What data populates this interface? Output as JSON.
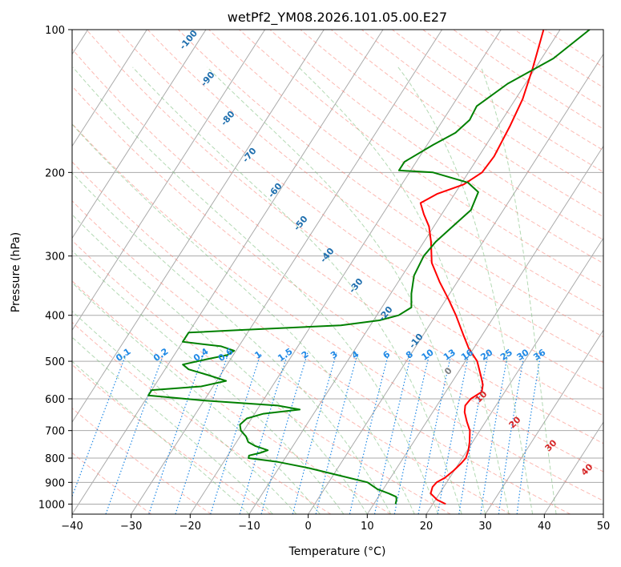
{
  "chart_data": {
    "type": "skewt",
    "title": "wetPf2_YM08.2026.101.05.00.E27",
    "xlabel": "Temperature (°C)",
    "ylabel": "Pressure (hPa)",
    "xlim": [
      -40,
      50
    ],
    "ylim": [
      1050,
      100
    ],
    "y_scale": "log",
    "x_ticks": [
      "−40",
      "−30",
      "−20",
      "−10",
      "0",
      "10",
      "20",
      "30",
      "40",
      "50"
    ],
    "x_tick_values": [
      -40,
      -30,
      -20,
      -10,
      0,
      10,
      20,
      30,
      40,
      50
    ],
    "y_ticks": [
      "100",
      "200",
      "300",
      "400",
      "500",
      "600",
      "700",
      "800",
      "900",
      "1000"
    ],
    "y_tick_values": [
      100,
      200,
      300,
      400,
      500,
      600,
      700,
      800,
      900,
      1000
    ],
    "grid": true,
    "series": [
      {
        "role": "temperature",
        "color": "#ff0000",
        "points": [
          [
            1000,
            22.2
          ],
          [
            980,
            20.3
          ],
          [
            950,
            18.5
          ],
          [
            920,
            18.1
          ],
          [
            900,
            18.3
          ],
          [
            880,
            19.2
          ],
          [
            850,
            19.9
          ],
          [
            820,
            20.4
          ],
          [
            800,
            20.6
          ],
          [
            770,
            20.2
          ],
          [
            740,
            19.5
          ],
          [
            700,
            18.3
          ],
          [
            670,
            16.8
          ],
          [
            640,
            15.4
          ],
          [
            620,
            14.8
          ],
          [
            600,
            15.0
          ],
          [
            580,
            16.1
          ],
          [
            560,
            15.5
          ],
          [
            540,
            14.4
          ],
          [
            500,
            12.0
          ],
          [
            470,
            9.2
          ],
          [
            440,
            6.8
          ],
          [
            400,
            3.4
          ],
          [
            370,
            0.4
          ],
          [
            340,
            -3.0
          ],
          [
            310,
            -6.4
          ],
          [
            280,
            -8.8
          ],
          [
            260,
            -10.8
          ],
          [
            245,
            -13.0
          ],
          [
            232,
            -14.8
          ],
          [
            222,
            -13.0
          ],
          [
            212,
            -9.5
          ],
          [
            200,
            -7.7
          ],
          [
            185,
            -7.4
          ],
          [
            160,
            -8.0
          ],
          [
            140,
            -8.8
          ],
          [
            120,
            -10.5
          ],
          [
            100,
            -12.8
          ]
        ]
      },
      {
        "role": "dewpoint",
        "color": "#008000",
        "points": [
          [
            1000,
            13.7
          ],
          [
            980,
            13.4
          ],
          [
            965,
            13.0
          ],
          [
            950,
            11.4
          ],
          [
            930,
            9.0
          ],
          [
            900,
            6.6
          ],
          [
            870,
            1.0
          ],
          [
            840,
            -4.8
          ],
          [
            815,
            -10.8
          ],
          [
            800,
            -16.2
          ],
          [
            790,
            -16.4
          ],
          [
            780,
            -14.8
          ],
          [
            770,
            -13.8
          ],
          [
            755,
            -16.3
          ],
          [
            740,
            -18.0
          ],
          [
            720,
            -19.0
          ],
          [
            700,
            -20.5
          ],
          [
            680,
            -21.3
          ],
          [
            660,
            -20.8
          ],
          [
            645,
            -18.5
          ],
          [
            632,
            -12.8
          ],
          [
            620,
            -17.0
          ],
          [
            605,
            -30.0
          ],
          [
            590,
            -40.0
          ],
          [
            575,
            -40.0
          ],
          [
            565,
            -32.0
          ],
          [
            550,
            -28.4
          ],
          [
            535,
            -32.0
          ],
          [
            520,
            -36.0
          ],
          [
            508,
            -37.5
          ],
          [
            495,
            -34.0
          ],
          [
            485,
            -31.0
          ],
          [
            475,
            -30.3
          ],
          [
            465,
            -33.0
          ],
          [
            455,
            -40.0
          ],
          [
            435,
            -40.0
          ],
          [
            430,
            -32.0
          ],
          [
            420,
            -15.0
          ],
          [
            410,
            -9.0
          ],
          [
            400,
            -6.3
          ],
          [
            385,
            -5.0
          ],
          [
            360,
            -6.5
          ],
          [
            330,
            -8.0
          ],
          [
            300,
            -8.5
          ],
          [
            280,
            -8.0
          ],
          [
            260,
            -6.8
          ],
          [
            240,
            -5.5
          ],
          [
            220,
            -6.2
          ],
          [
            210,
            -9.0
          ],
          [
            200,
            -16.0
          ],
          [
            198,
            -22.0
          ],
          [
            190,
            -22.0
          ],
          [
            175,
            -19.0
          ],
          [
            165,
            -16.5
          ],
          [
            155,
            -15.5
          ],
          [
            145,
            -15.8
          ],
          [
            130,
            -13.0
          ],
          [
            115,
            -8.0
          ],
          [
            100,
            -5.0
          ]
        ]
      }
    ],
    "dry_adiabat_labels": [
      "-100",
      "-90",
      "-80",
      "-70",
      "-60",
      "-50",
      "-40",
      "-30",
      "-20",
      "-10"
    ],
    "mixing_ratio_labels": [
      "0.1",
      "0.2",
      "0.4",
      "0.6",
      "1",
      "1.5",
      "2",
      "3",
      "4",
      "6",
      "8",
      "10",
      "13",
      "16",
      "20",
      "25",
      "30",
      "36"
    ],
    "moist_adiabat_labels": [
      "0",
      "10",
      "20",
      "30",
      "40"
    ],
    "colors": {
      "temperature": "#ff0000",
      "dewpoint": "#008000",
      "isotherm": "#aaaaaa",
      "dry_adiabat": "#fa8072",
      "moist_adiabat": "#80c080",
      "mixing_ratio": "#1e88e5",
      "dry_label": "#1f6fae",
      "moist_label": "#d62728",
      "zero_label": "#808080"
    }
  }
}
